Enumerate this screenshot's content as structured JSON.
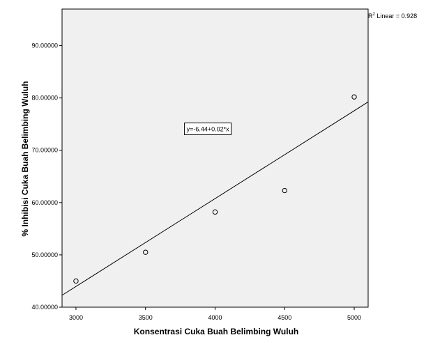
{
  "chart_data": {
    "type": "scatter",
    "xlabel": "Konsentrasi Cuka Buah Belimbing Wuluh",
    "ylabel": "% Inhibisi Cuka Buah Belimbing Wuluh",
    "xlim": [
      2900,
      5100
    ],
    "ylim": [
      40,
      97
    ],
    "x_ticks": [
      3000,
      3500,
      4000,
      4500,
      5000
    ],
    "x_tick_labels": [
      "3000",
      "3500",
      "4000",
      "4500",
      "5000"
    ],
    "y_ticks": [
      40,
      50,
      60,
      70,
      80,
      90
    ],
    "y_tick_labels": [
      "40.00000",
      "50.00000",
      "60.00000",
      "70.00000",
      "80.00000",
      "90.00000"
    ],
    "points": [
      {
        "x": 3000,
        "y": 45.0
      },
      {
        "x": 3500,
        "y": 50.5
      },
      {
        "x": 4000,
        "y": 58.2
      },
      {
        "x": 4500,
        "y": 62.3
      },
      {
        "x": 5000,
        "y": 80.2
      }
    ],
    "fit_line": {
      "intercept": -6.44,
      "slope": 0.0168
    },
    "equation_label": "y=-6.44+0.02*x",
    "equation_anchor": {
      "x": 3780,
      "y": 73.5
    },
    "r2_label_prefix": "R",
    "r2_label_sup": "2",
    "r2_label_suffix": " Linear = 0.928",
    "grid": false,
    "colors": {
      "plot_bg": "#f0f0f0",
      "line": "#000000",
      "marker": "#000000"
    }
  }
}
